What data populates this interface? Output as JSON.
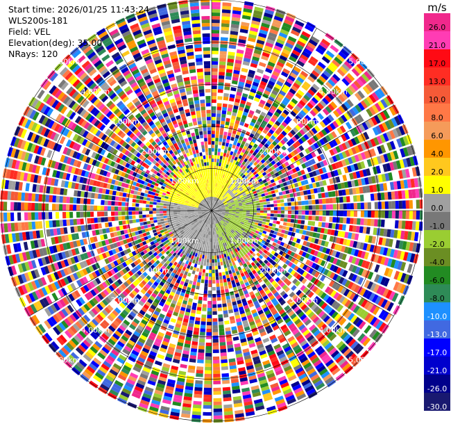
{
  "info": {
    "start_time": "Start time: 2026/01/25 11:43:24",
    "site": "WLS200s-181",
    "field": "Field: VEL",
    "elevation": "Elevation(deg): 35.00",
    "nrays": "NRays: 120"
  },
  "chart_data": {
    "type": "heatmap",
    "projection": "polar PPI",
    "field": "VEL",
    "elevation_deg": 35.0,
    "n_rays": 120,
    "range_rings_km": [
      1.0,
      2.0,
      3.0,
      4.0,
      5.0
    ],
    "range_labels": [
      "1.00km",
      "2.00km",
      "3.00km",
      "4.00km",
      "5.00km"
    ],
    "max_range_km": 5.0,
    "colorbar": {
      "unit": "m/s",
      "ticks": [
        "26.0",
        "21.0",
        "17.0",
        "13.0",
        "10.0",
        "8.0",
        "6.0",
        "4.0",
        "2.0",
        "1.0",
        "0.0",
        "-1.0",
        "-2.0",
        "-4.0",
        "-6.0",
        "-8.0",
        "-10.0",
        "-13.0",
        "-17.0",
        "-21.0",
        "-26.0",
        "-30.0"
      ],
      "colors": [
        "#f0288c",
        "#ff3cb4",
        "#ff0a14",
        "#ff2d23",
        "#f55a37",
        "#ff7846",
        "#f59b5a",
        "#ff9600",
        "#ffc81e",
        "#ffff00",
        "#a0a0a0",
        "#787878",
        "#9acd32",
        "#6b8e23",
        "#228b22",
        "#2e8b57",
        "#1e90ff",
        "#4169e1",
        "#0000ff",
        "#0000cd",
        "#00008b",
        "#191970"
      ]
    },
    "inner_region": {
      "description_of_pattern": "near-range velocities: approaching/receding split",
      "range_km": [
        0.0,
        1.2
      ],
      "dominant_values_ms": [
        4.0,
        0.0,
        -1.0
      ]
    }
  }
}
